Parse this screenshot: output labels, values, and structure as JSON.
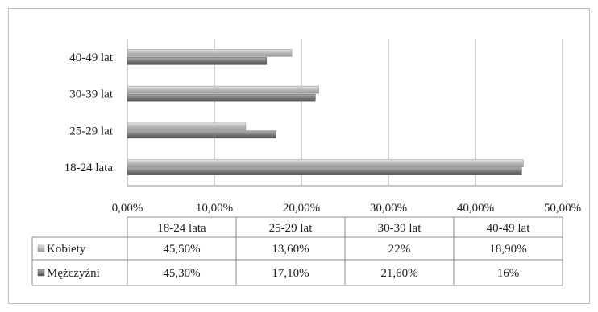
{
  "chart_data": {
    "type": "bar",
    "orientation": "horizontal",
    "categories": [
      "18-24 lata",
      "25-29 lat",
      "30-39 lat",
      "40-49 lat"
    ],
    "series": [
      {
        "name": "Kobiety",
        "values": [
          45.5,
          13.6,
          22,
          18.9
        ],
        "color": "#b8b8b8"
      },
      {
        "name": "Mężczyźni",
        "values": [
          45.3,
          17.1,
          21.6,
          16
        ],
        "color": "#7a7a7a"
      }
    ],
    "xlim": [
      0,
      50
    ],
    "x_ticks": [
      "0,00%",
      "10,00%",
      "20,00%",
      "30,00%",
      "40,00%",
      "50,00%"
    ],
    "grid": true,
    "data_table": {
      "header": [
        "18-24 lata",
        "25-29 lat",
        "30-39 lat",
        "40-49 lat"
      ],
      "rows": [
        {
          "label": "Kobiety",
          "cells": [
            "45,50%",
            "13,60%",
            "22%",
            "18,90%"
          ]
        },
        {
          "label": "Mężczyźni",
          "cells": [
            "45,30%",
            "17,10%",
            "21,60%",
            "16%"
          ]
        }
      ]
    }
  }
}
